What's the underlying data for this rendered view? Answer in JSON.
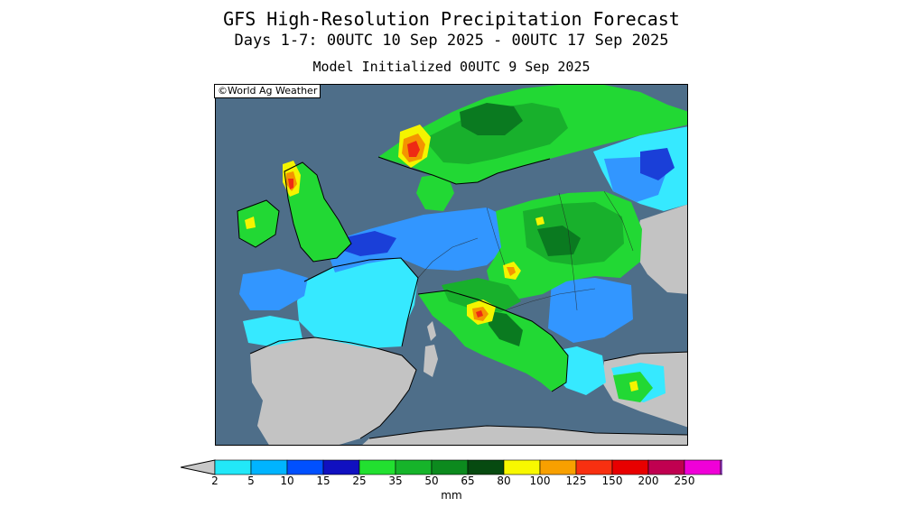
{
  "title": {
    "line1": "GFS High-Resolution Precipitation Forecast",
    "line2": "Days 1-7: 00UTC 10 Sep 2025 - 00UTC 17 Sep 2025",
    "line3": "Model Initialized 00UTC 9 Sep 2025"
  },
  "credit": "©World Ag Weather",
  "colorbar": {
    "unit": "mm",
    "ticks": [
      "2",
      "5",
      "10",
      "15",
      "25",
      "35",
      "50",
      "65",
      "80",
      "100",
      "125",
      "150",
      "200",
      "250"
    ],
    "colors": [
      "#c8c8c8",
      "#22e8f8",
      "#00b4ff",
      "#0050ff",
      "#1010c0",
      "#22e030",
      "#16b42a",
      "#0c8a1e",
      "#064a10",
      "#f8f800",
      "#f8a000",
      "#f83010",
      "#e80000",
      "#c00050",
      "#f000d8",
      "#9c50c8",
      "#f0f0f0"
    ]
  },
  "map": {
    "colors": {
      "sea": "#4e6e89",
      "dry_land": "#c3c3c3",
      "light": "#36e9ff",
      "moderate": "#3296ff",
      "heavy_blue": "#1a3fd8",
      "green_light": "#22d834",
      "green_mid": "#18b02c",
      "green_dark": "#0a7a20",
      "yellow": "#f4f400",
      "orange": "#f49400",
      "red": "#ee2a14"
    }
  }
}
